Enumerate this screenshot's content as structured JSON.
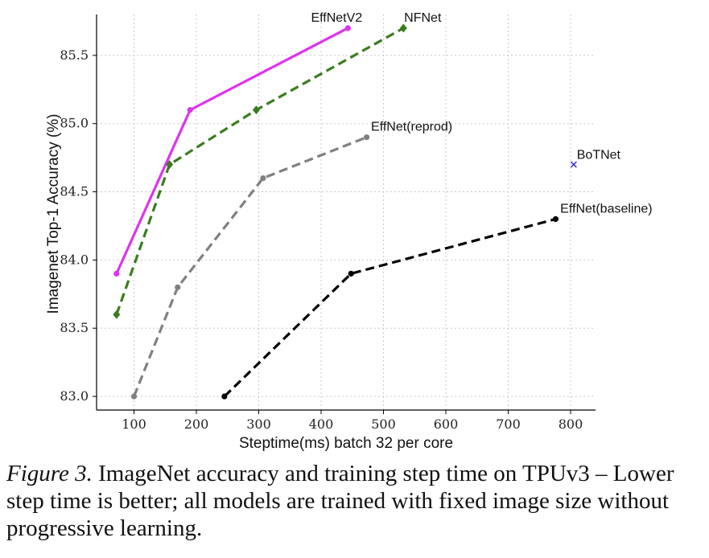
{
  "chart_data": {
    "type": "line",
    "xlabel": "Steptime(ms) batch 32 per core",
    "ylabel": "Imagenet Top-1 Accuracy (%)",
    "xlim": [
      40,
      840
    ],
    "ylim": [
      82.9,
      85.8
    ],
    "x_ticks": [
      100,
      200,
      300,
      400,
      500,
      600,
      700,
      800
    ],
    "y_ticks": [
      83.0,
      83.5,
      84.0,
      84.5,
      85.0,
      85.5
    ],
    "x_tick_labels": [
      "100",
      "200",
      "300",
      "400",
      "500",
      "600",
      "700",
      "800"
    ],
    "y_tick_labels": [
      "83.0",
      "83.5",
      "84.0",
      "84.5",
      "85.0",
      "85.5"
    ],
    "grid": true,
    "series": [
      {
        "name": "EffNetV2",
        "color": "#dd33ee",
        "line_style": "solid",
        "marker": "circle",
        "x": [
          72,
          190,
          443
        ],
        "y": [
          83.9,
          85.1,
          85.7
        ]
      },
      {
        "name": "NFNet",
        "color": "#3a7d1f",
        "line_style": "dashed",
        "marker": "diamond",
        "x": [
          72,
          157,
          296,
          532
        ],
        "y": [
          83.6,
          84.7,
          85.1,
          85.7
        ]
      },
      {
        "name": "EffNet(reprod)",
        "color": "#808080",
        "line_style": "dashed",
        "marker": "circle",
        "x": [
          100,
          170,
          307,
          473
        ],
        "y": [
          83.0,
          83.8,
          84.6,
          84.9
        ]
      },
      {
        "name": "EffNet(baseline)",
        "color": "#000000",
        "line_style": "dashed",
        "marker": "circle",
        "x": [
          245,
          448,
          776
        ],
        "y": [
          83.0,
          83.9,
          84.3
        ]
      },
      {
        "name": "BoTNet",
        "color": "#2222cc",
        "line_style": "none",
        "marker": "x",
        "x": [
          805
        ],
        "y": [
          84.7
        ]
      }
    ]
  },
  "caption": {
    "figure_label": "Figure 3.",
    "text": " ImageNet accuracy and training step time on TPUv3 – Lower step time is better; all models are trained with fixed image size without progressive learning."
  }
}
